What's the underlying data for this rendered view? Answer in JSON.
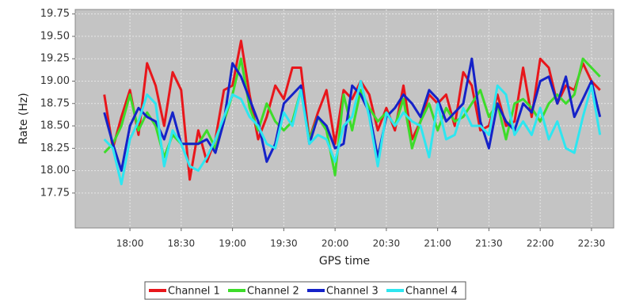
{
  "chart_data": {
    "type": "line",
    "x_label": "GPS time",
    "y_label": "Rate (Hz)",
    "x": [
      "17:45",
      "17:50",
      "17:55",
      "18:00",
      "18:05",
      "18:10",
      "18:15",
      "18:20",
      "18:25",
      "18:30",
      "18:35",
      "18:40",
      "18:45",
      "18:50",
      "18:55",
      "19:00",
      "19:05",
      "19:10",
      "19:15",
      "19:20",
      "19:25",
      "19:30",
      "19:35",
      "19:40",
      "19:45",
      "19:50",
      "19:55",
      "20:00",
      "20:05",
      "20:10",
      "20:15",
      "20:20",
      "20:25",
      "20:30",
      "20:35",
      "20:40",
      "20:45",
      "20:50",
      "20:55",
      "21:00",
      "21:05",
      "21:10",
      "21:15",
      "21:20",
      "21:25",
      "21:30",
      "21:35",
      "21:40",
      "21:45",
      "21:50",
      "21:55",
      "22:00",
      "22:05",
      "22:10",
      "22:15",
      "22:20",
      "22:25",
      "22:30",
      "22:35"
    ],
    "xlim": [
      "17:28",
      "22:43"
    ],
    "xticks": [
      "18:00",
      "18:30",
      "19:00",
      "19:30",
      "20:00",
      "20:30",
      "21:00",
      "21:30",
      "22:00",
      "22:30"
    ],
    "ylim": [
      17.36,
      19.8
    ],
    "yticks": [
      17.75,
      {
        "value": 18,
        "label": "18.00"
      },
      18.25,
      {
        "value": 18.5,
        "label": "18.50"
      },
      18.75,
      {
        "value": 19,
        "label": "19.00"
      },
      19.25,
      {
        "value": 19.5,
        "label": "19.50"
      },
      19.75
    ],
    "grid": true,
    "legend": "bottom",
    "series": [
      {
        "name": "Channel 1",
        "color": "#e8161b",
        "values": [
          18.85,
          18.25,
          18.6,
          18.9,
          18.4,
          19.2,
          18.95,
          18.5,
          19.1,
          18.9,
          17.9,
          18.45,
          18.1,
          18.35,
          18.9,
          18.95,
          19.45,
          18.85,
          18.35,
          18.6,
          18.95,
          18.8,
          19.15,
          19.15,
          18.35,
          18.65,
          18.9,
          18.3,
          18.9,
          18.8,
          19.0,
          18.85,
          18.45,
          18.7,
          18.45,
          18.95,
          18.35,
          18.55,
          18.85,
          18.75,
          18.85,
          18.5,
          19.1,
          18.95,
          18.45,
          18.5,
          18.85,
          18.5,
          18.55,
          19.15,
          18.6,
          19.25,
          19.15,
          18.75,
          18.95,
          18.9,
          19.2,
          19.0,
          18.9
        ]
      },
      {
        "name": "Channel 2",
        "color": "#3ddc2a",
        "values": [
          18.2,
          18.3,
          18.5,
          18.85,
          18.45,
          18.65,
          18.5,
          18.15,
          18.4,
          18.3,
          18.3,
          18.3,
          18.45,
          18.25,
          18.55,
          18.85,
          19.25,
          18.7,
          18.45,
          18.75,
          18.55,
          18.45,
          18.55,
          18.9,
          18.35,
          18.6,
          18.45,
          17.95,
          18.85,
          18.45,
          18.9,
          18.7,
          18.55,
          18.65,
          18.5,
          18.8,
          18.25,
          18.55,
          18.75,
          18.45,
          18.7,
          18.55,
          18.6,
          18.75,
          18.9,
          18.6,
          18.75,
          18.35,
          18.75,
          18.8,
          18.7,
          18.55,
          18.75,
          18.85,
          18.75,
          18.85,
          19.25,
          19.15,
          19.05
        ]
      },
      {
        "name": "Channel 3",
        "color": "#1522c8",
        "values": [
          18.65,
          18.3,
          18.0,
          18.5,
          18.7,
          18.6,
          18.55,
          18.35,
          18.65,
          18.3,
          18.3,
          18.3,
          18.35,
          18.2,
          18.55,
          19.2,
          19.05,
          18.8,
          18.55,
          18.1,
          18.3,
          18.75,
          18.85,
          18.95,
          18.3,
          18.6,
          18.5,
          18.25,
          18.3,
          18.95,
          18.85,
          18.65,
          18.15,
          18.6,
          18.7,
          18.85,
          18.75,
          18.6,
          18.9,
          18.8,
          18.55,
          18.65,
          18.75,
          19.25,
          18.55,
          18.25,
          18.75,
          18.55,
          18.45,
          18.75,
          18.65,
          19.0,
          19.05,
          18.75,
          19.05,
          18.6,
          18.8,
          19.0,
          18.6
        ]
      },
      {
        "name": "Channel 4",
        "color": "#2ee6f0",
        "values": [
          18.35,
          18.25,
          17.85,
          18.35,
          18.55,
          18.85,
          18.75,
          18.05,
          18.45,
          18.3,
          18.05,
          18.0,
          18.15,
          18.35,
          18.6,
          18.85,
          18.8,
          18.6,
          18.5,
          18.3,
          18.25,
          18.65,
          18.5,
          18.9,
          18.3,
          18.4,
          18.35,
          18.1,
          18.5,
          18.6,
          19.0,
          18.6,
          18.05,
          18.65,
          18.5,
          18.65,
          18.55,
          18.5,
          18.15,
          18.75,
          18.35,
          18.4,
          18.7,
          18.5,
          18.5,
          18.4,
          18.95,
          18.85,
          18.4,
          18.55,
          18.4,
          18.7,
          18.35,
          18.55,
          18.25,
          18.2,
          18.6,
          18.95,
          18.4
        ]
      }
    ]
  }
}
